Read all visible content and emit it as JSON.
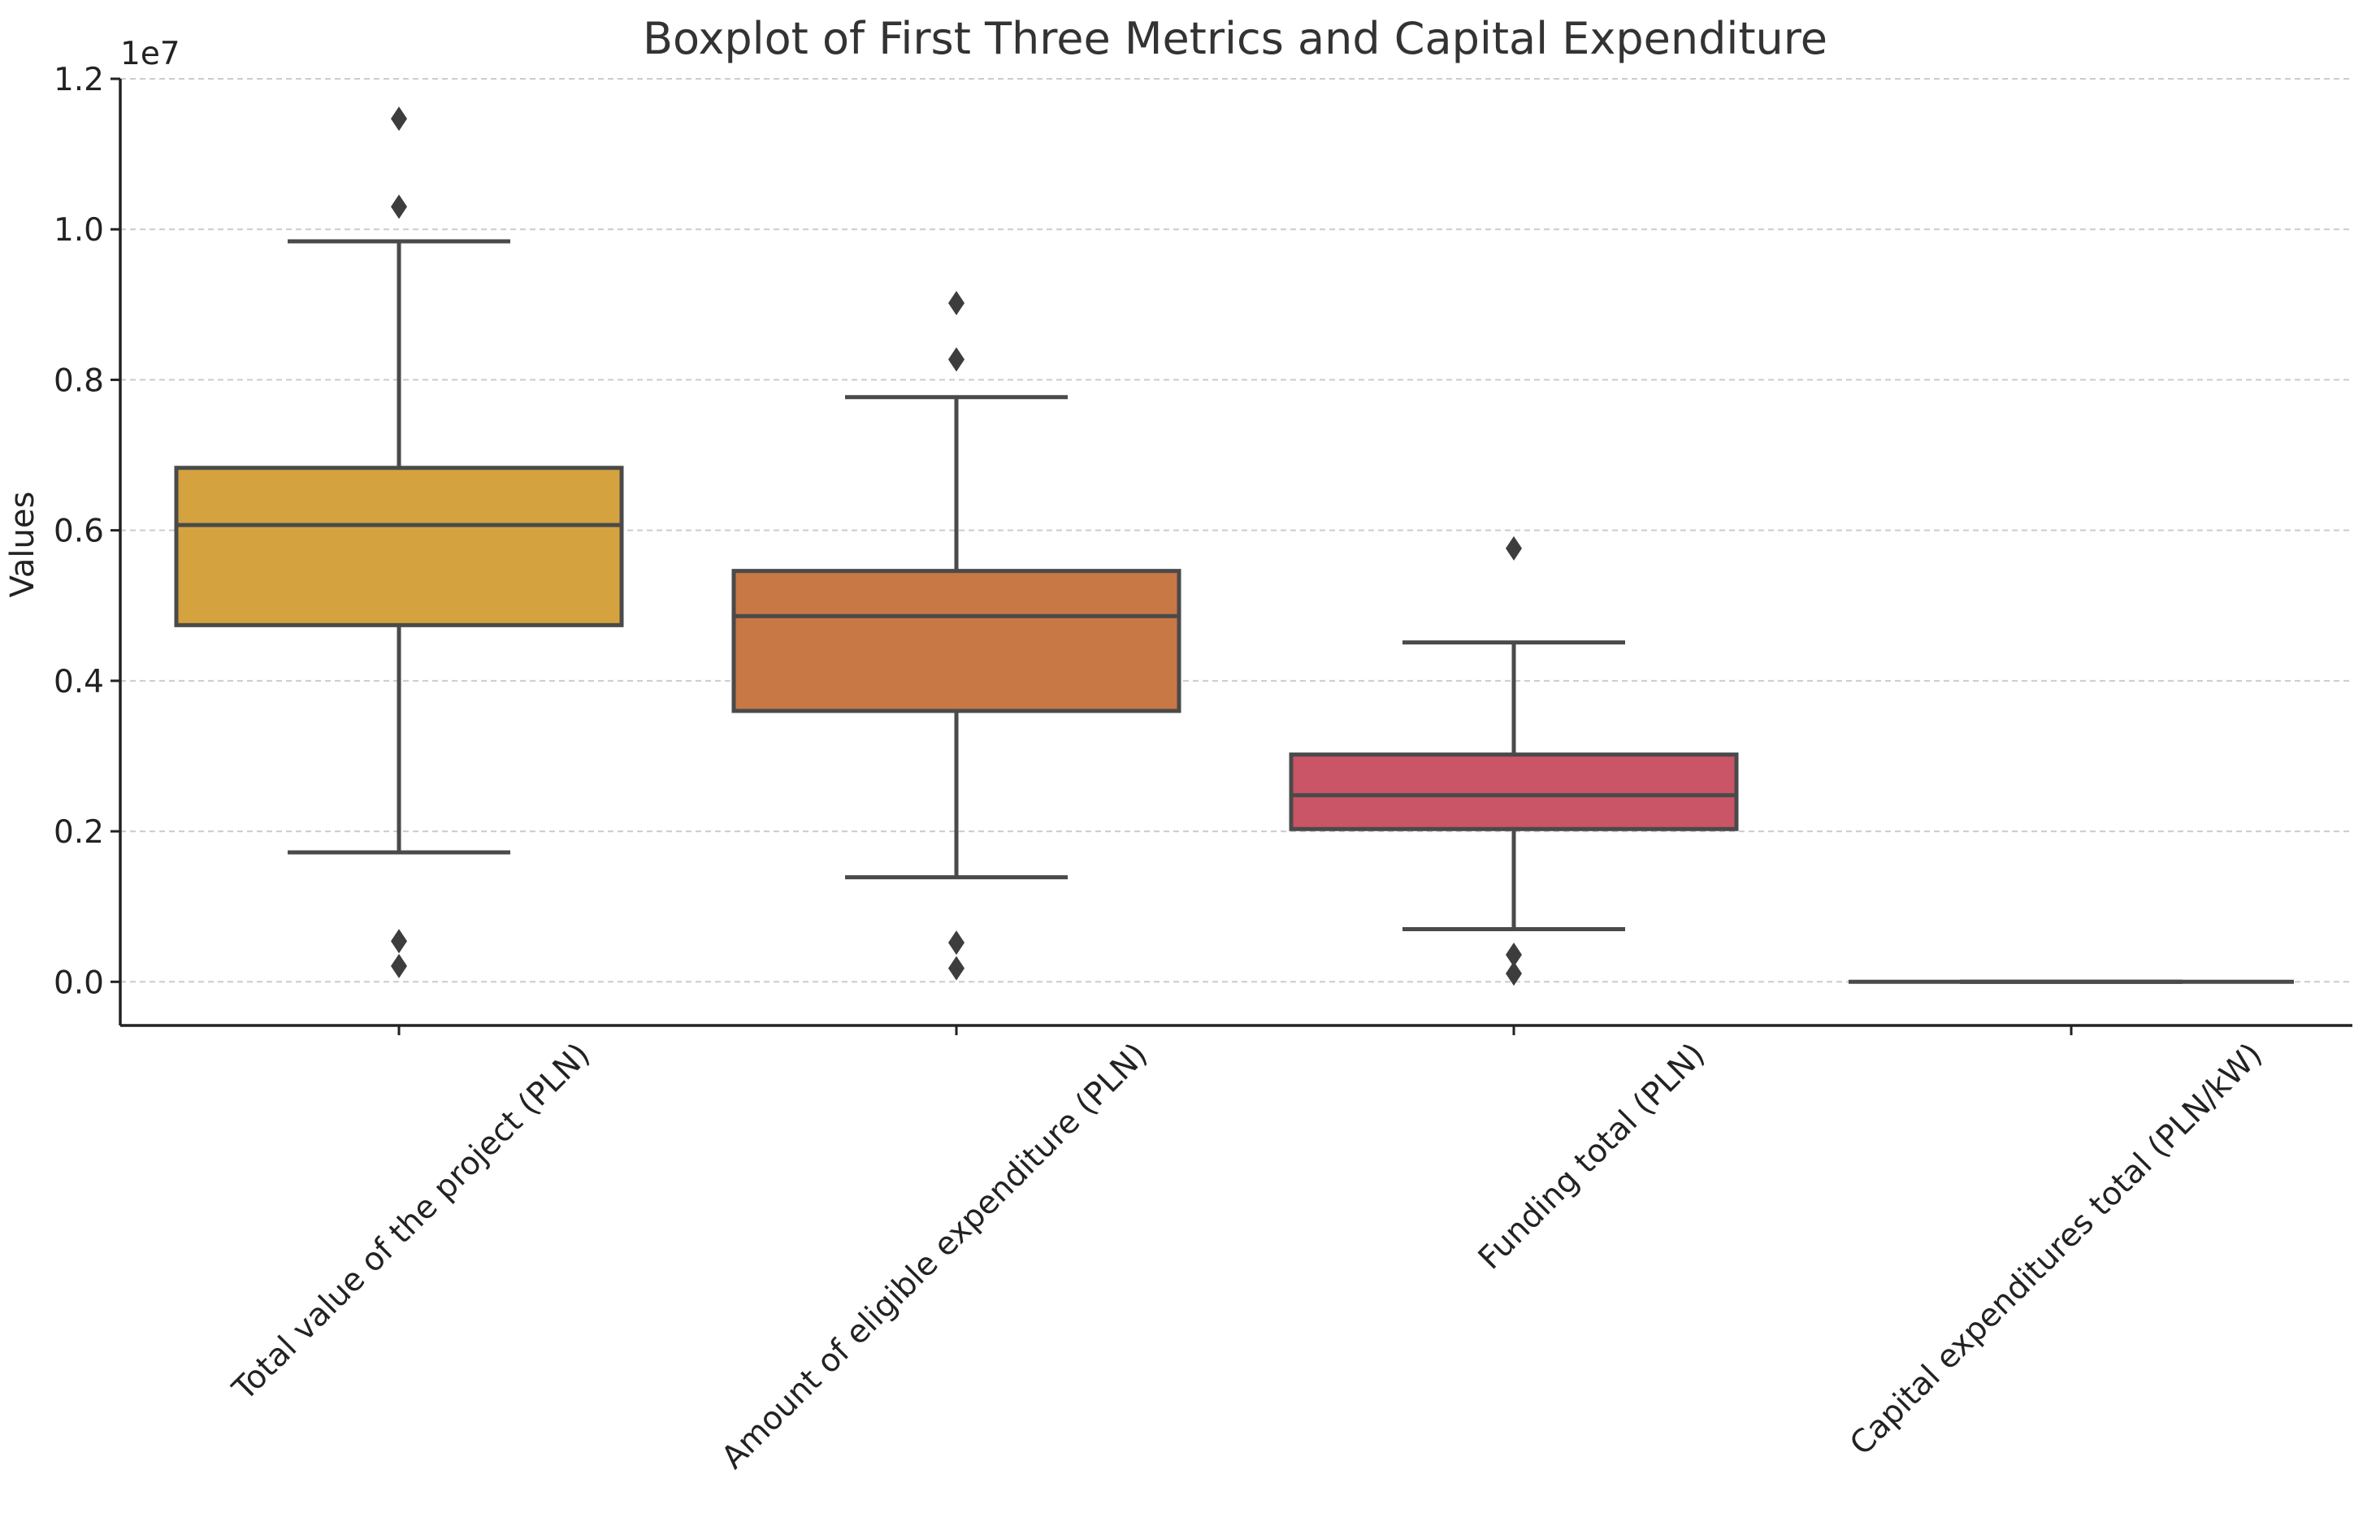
{
  "chart_data": {
    "type": "boxplot",
    "title": "Boxplot of First Three Metrics and Capital Expenditure",
    "xlabel": "",
    "ylabel": "Values",
    "y_offset_label": "1e7",
    "scale": 10000000,
    "ylim": [
      -0.058,
      1.2
    ],
    "yticks": [
      0.0,
      0.2,
      0.4,
      0.6,
      0.8,
      1.0,
      1.2
    ],
    "ytick_labels": [
      "0.0",
      "0.2",
      "0.4",
      "0.6",
      "0.8",
      "1.0",
      "1.2"
    ],
    "grid": true,
    "categories": [
      "Total value of the project (PLN)",
      "Amount of eligible expenditure (PLN)",
      "Funding total (PLN)",
      "Capital expenditures total (PLN/kW)"
    ],
    "series": [
      {
        "name": "Total value of the project (PLN)",
        "color": "#D4A33F",
        "whisker_low": 0.172,
        "q1": 0.474,
        "median": 0.607,
        "q3": 0.683,
        "whisker_high": 0.984,
        "outliers": [
          1.147,
          1.03,
          0.054,
          0.021
        ]
      },
      {
        "name": "Amount of eligible expenditure (PLN)",
        "color": "#C87845",
        "whisker_low": 0.139,
        "q1": 0.36,
        "median": 0.486,
        "q3": 0.546,
        "whisker_high": 0.777,
        "outliers": [
          0.902,
          0.827,
          0.052,
          0.018
        ]
      },
      {
        "name": "Funding total (PLN)",
        "color": "#C95566",
        "whisker_low": 0.07,
        "q1": 0.203,
        "median": 0.248,
        "q3": 0.302,
        "whisker_high": 0.451,
        "outliers": [
          0.576,
          0.036,
          0.011
        ]
      },
      {
        "name": "Capital expenditures total (PLN/kW)",
        "color": "#8C5A9E",
        "whisker_low": 0.0,
        "q1": 0.0,
        "median": 0.0,
        "q3": 0.0,
        "whisker_high": 0.0,
        "outliers": []
      }
    ]
  }
}
